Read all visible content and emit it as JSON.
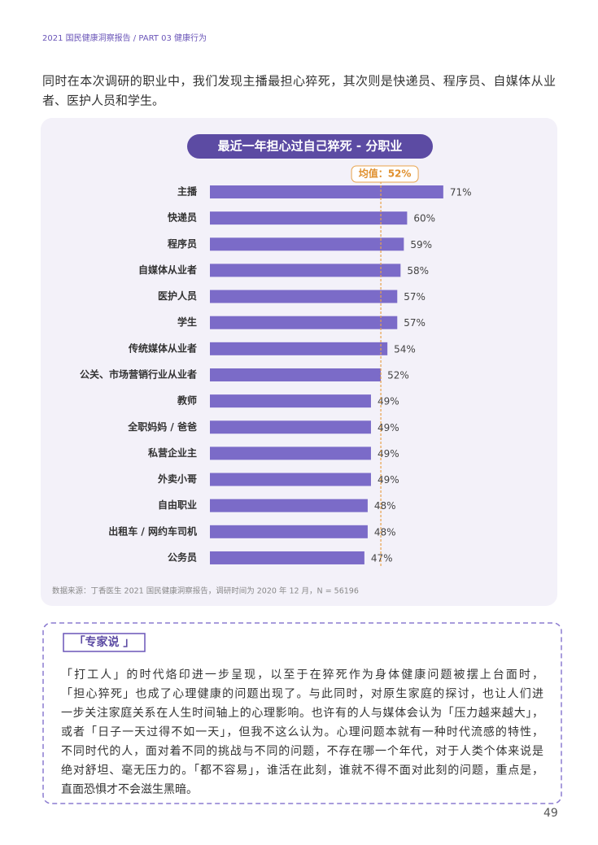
{
  "header": "2021 国民健康洞察报告 / PART 03 健康行为",
  "intro": [
    "同时在本次调研的职业中，我们发现主播最担心猝死，其次则是快递员、程序员、自媒体从业",
    "者、医护人员和学生。"
  ],
  "chart_data": {
    "type": "bar",
    "orientation": "horizontal",
    "title": "最近一年担心过自己猝死 - 分职业",
    "categories": [
      "主播",
      "快递员",
      "程序员",
      "自媒体从业者",
      "医护人员",
      "学生",
      "传统媒体从业者",
      "公关、市场营销行业从业者",
      "教师",
      "全职妈妈 / 爸爸",
      "私营企业主",
      "外卖小哥",
      "自由职业",
      "出租车 / 网约车司机",
      "公务员"
    ],
    "values": [
      71,
      60,
      59,
      58,
      57,
      57,
      54,
      52,
      49,
      49,
      49,
      49,
      48,
      48,
      47
    ],
    "value_labels": [
      "71%",
      "60%",
      "59%",
      "58%",
      "57%",
      "57%",
      "54%",
      "52%",
      "49%",
      "49%",
      "49%",
      "49%",
      "48%",
      "48%",
      "47%"
    ],
    "color": "#7b6bc8",
    "xlim": [
      0,
      100
    ],
    "mean": {
      "value": 52,
      "label": "均值：52%"
    },
    "source": "数据来源：丁香医生 2021 国民健康洞察报告，调研时间为 2020 年 12 月，N = 56196"
  },
  "expert": {
    "tag": "「专家说 」",
    "lines": [
      "「打工人」的时代烙印进一步呈现，以至于在猝死作为身体健康问题被摆上台面时，",
      "「担心猝死」也成了心理健康的问题出现了。与此同时，对原生家庭的探讨，也让人们进",
      "一步关注家庭关系在人生时间轴上的心理影响。也许有的人与媒体会认为「压力越来越大」，",
      "或者「日子一天过得不如一天」，但我不这么认为。心理问题本就有一种时代流感的特性，",
      "不同时代的人，面对着不同的挑战与不同的问题，不存在哪一个年代，对于人类个体来说是",
      "绝对舒坦、毫无压力的。「都不容易」，谁活在此刻，谁就不得不面对此刻的问题，重点是，",
      "直面恐惧才不会滋生黑暗。"
    ]
  },
  "page_number": "49"
}
